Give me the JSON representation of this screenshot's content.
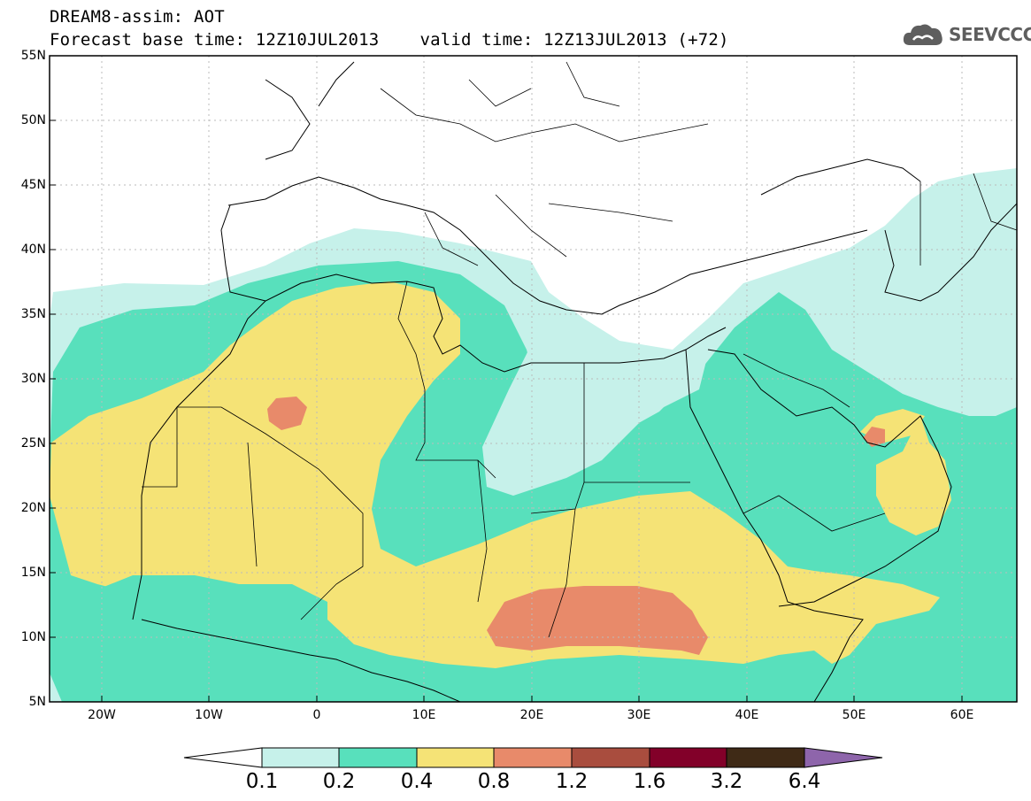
{
  "header": {
    "line1": "DREAM8-assim: AOT",
    "base_time": "Forecast base time: 12Z10JUL2013",
    "valid_time": "valid time: 12Z13JUL2013 (+72)"
  },
  "logo": {
    "text": "SEEVCCC",
    "icon": "cloud-logo-icon"
  },
  "axes": {
    "lat_labels": [
      "55N",
      "50N",
      "45N",
      "40N",
      "35N",
      "30N",
      "25N",
      "20N",
      "15N",
      "10N",
      "5N"
    ],
    "lon_labels": [
      "20W",
      "10W",
      "0",
      "10E",
      "20E",
      "30E",
      "40E",
      "50E",
      "60E"
    ]
  },
  "colorbar": {
    "labels": [
      "0.1",
      "0.2",
      "0.4",
      "0.8",
      "1.2",
      "1.6",
      "3.2",
      "6.4"
    ],
    "colors": [
      "#ffffff",
      "#c6f1ea",
      "#58e0bc",
      "#f5e376",
      "#e88a6a",
      "#a94d3e",
      "#820029",
      "#3f2a16",
      "#8e65ab"
    ]
  },
  "colors": {
    "water": "#ffffff",
    "border": "#000000",
    "grid": "#bbbbbb"
  }
}
